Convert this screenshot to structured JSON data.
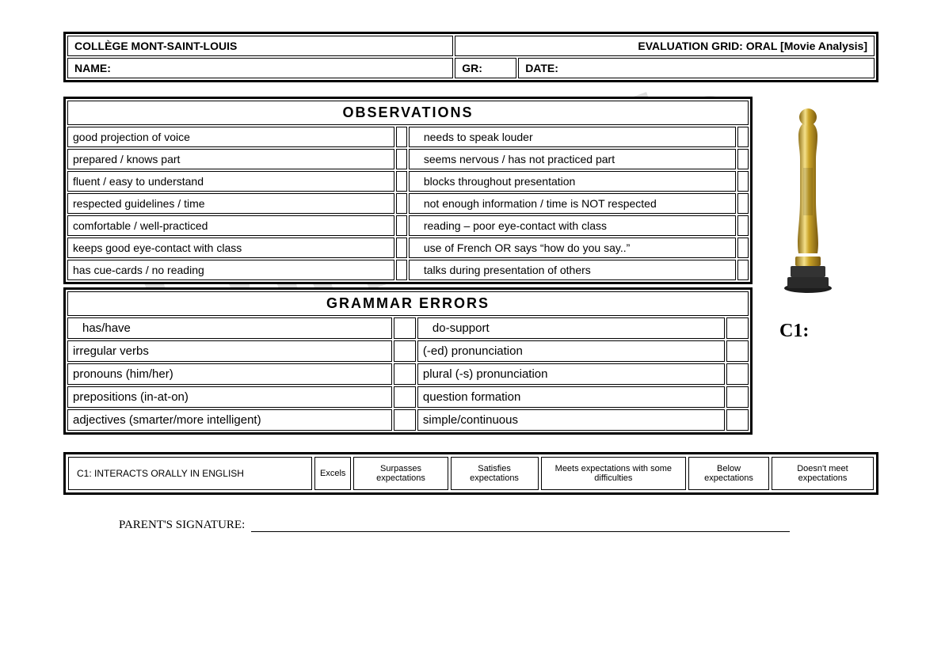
{
  "header": {
    "school": "COLLÈGE MONT-SAINT-LOUIS",
    "title": "EVALUATION GRID: ORAL [Movie Analysis]",
    "name_label": "NAME:",
    "gr_label": "GR:",
    "date_label": "DATE:"
  },
  "observations": {
    "heading": "OBSERVATIONS",
    "rows": [
      {
        "left": "good projection of voice",
        "right": "needs to speak louder"
      },
      {
        "left": "prepared / knows part",
        "right": "seems nervous /  has not practiced part"
      },
      {
        "left": "fluent / easy to understand",
        "right": "blocks throughout presentation"
      },
      {
        "left": "respected guidelines / time",
        "right": "not enough information / time is NOT respected"
      },
      {
        "left": "comfortable / well-practiced",
        "right": "reading – poor eye-contact with class"
      },
      {
        "left": "keeps good eye-contact with class",
        "right": "use of French OR says “how do you say..”"
      },
      {
        "left": "has cue-cards / no reading",
        "right": "talks during presentation of others"
      }
    ]
  },
  "grammar": {
    "heading": "GRAMMAR ERRORS",
    "rows": [
      {
        "left": "has/have",
        "left_indent": true,
        "right": "do-support",
        "right_indent": true
      },
      {
        "left": "irregular verbs",
        "left_indent": false,
        "right": "(-ed) pronunciation"
      },
      {
        "left": "pronouns (him/her)",
        "left_indent": false,
        "right": "plural (-s) pronunciation"
      },
      {
        "left": "prepositions (in-at-on)",
        "left_indent": false,
        "right": "question formation"
      },
      {
        "left": "adjectives  (smarter/more intelligent)",
        "left_indent": false,
        "right": "simple/continuous"
      }
    ]
  },
  "c1_label": "C1:",
  "rubric": {
    "label": "C1: INTERACTS ORALLY IN ENGLISH",
    "levels": [
      "Excels",
      "Surpasses expectations",
      "Satisfies expectations",
      "Meets expectations with some difficulties",
      "Below expectations",
      "Doesn't meet expectations"
    ]
  },
  "signature_label": "PARENT'S SIGNATURE:",
  "watermark": "SLprintable",
  "colors": {
    "border": "#000000",
    "background": "#ffffff",
    "text": "#000000",
    "oscar_gold": "#c9a227",
    "oscar_highlight": "#f4e08a",
    "oscar_base": "#2a2a2a"
  }
}
